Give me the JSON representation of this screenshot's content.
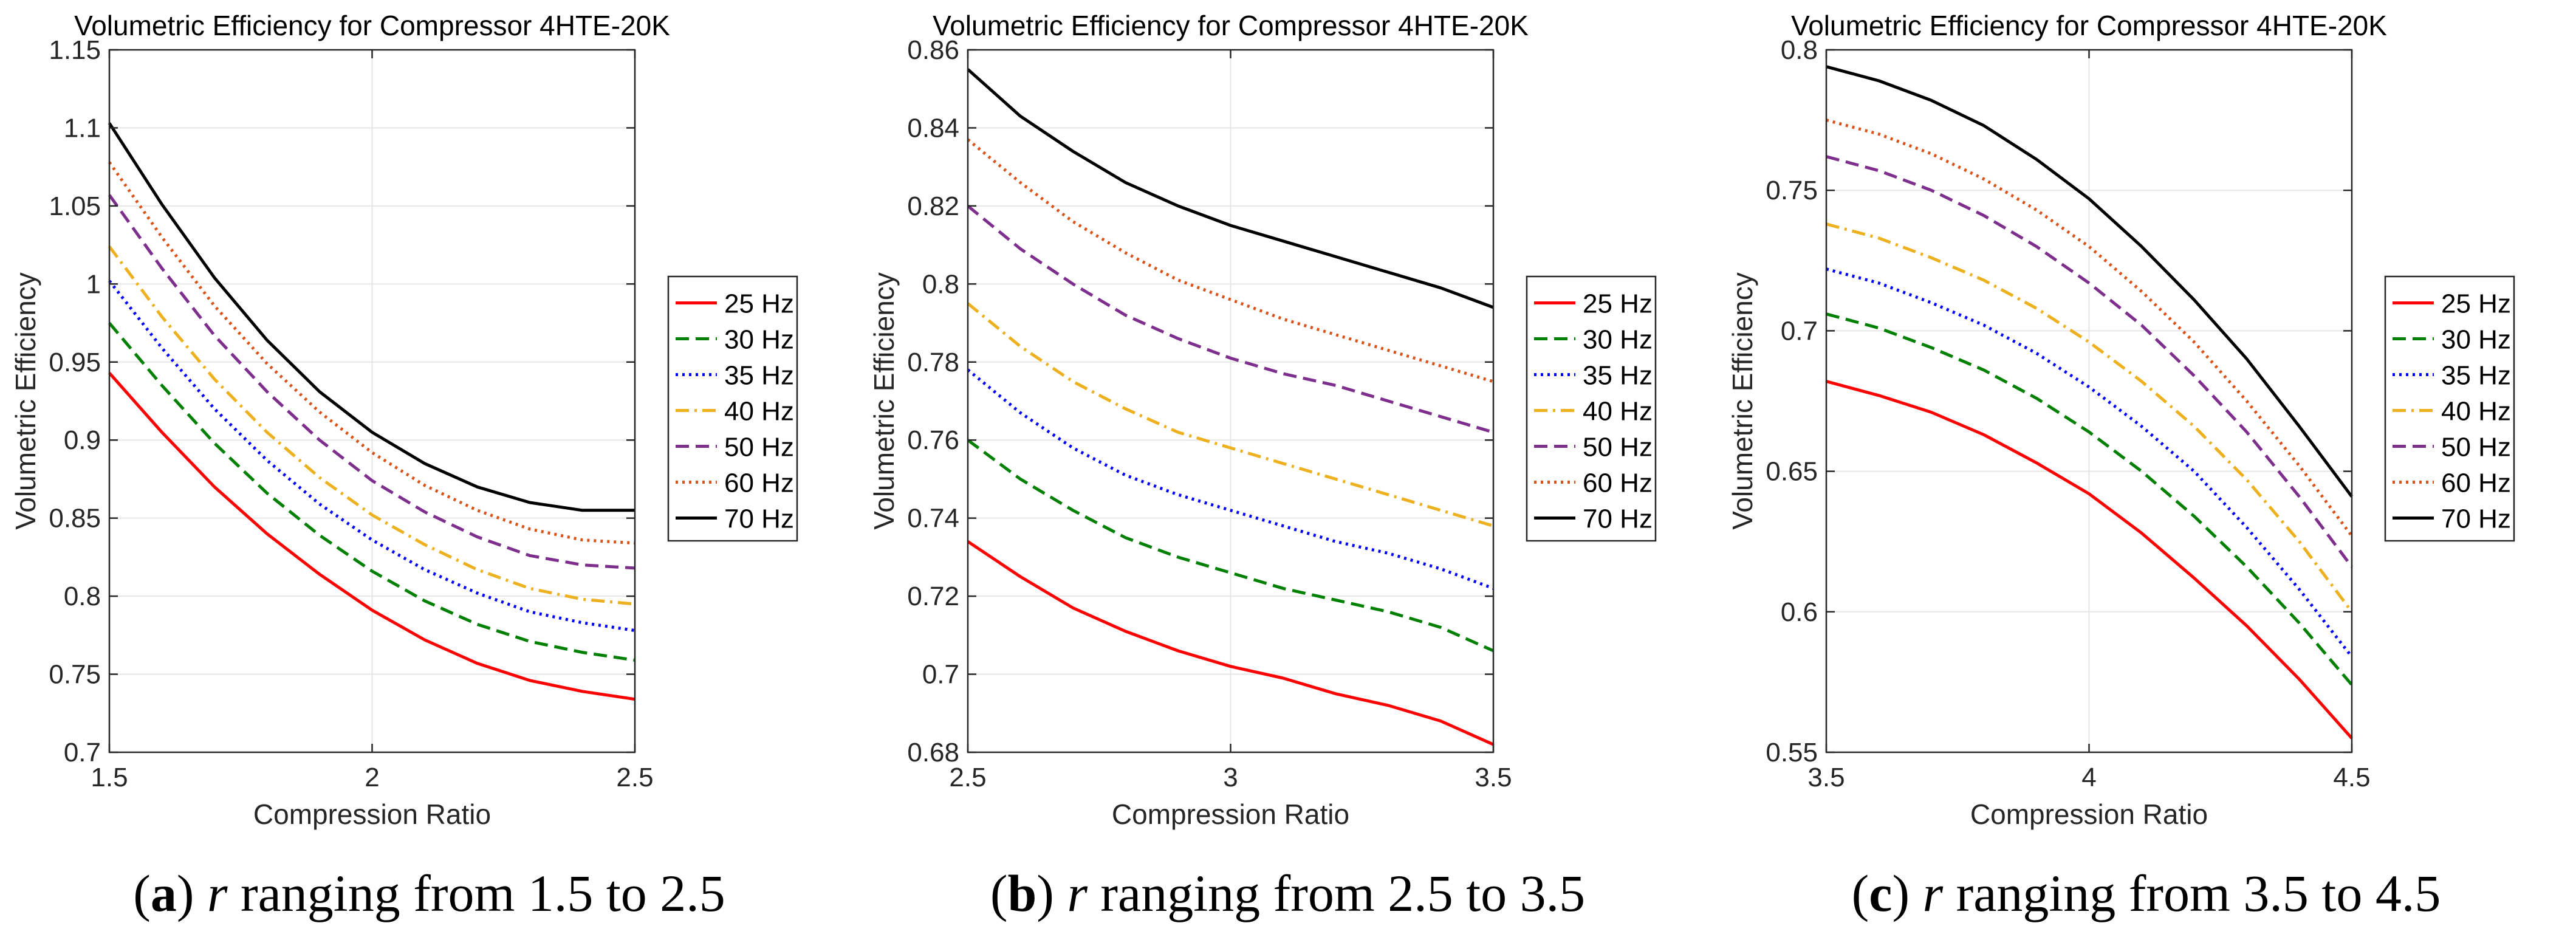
{
  "chart_data": [
    {
      "type": "line",
      "title": "Volumetric Efficiency for Compressor 4HTE-20K",
      "xlabel": "Compression Ratio",
      "ylabel": "Volumetric Efficiency",
      "xlim": [
        1.5,
        2.5
      ],
      "ylim": [
        0.7,
        1.15
      ],
      "xticks": [
        "1.5",
        "2",
        "2.5"
      ],
      "yticks": [
        "0.7",
        "0.75",
        "0.8",
        "0.85",
        "0.9",
        "0.95",
        "1",
        "1.05",
        "1.1",
        "1.15"
      ],
      "grid": true,
      "legend_position": "right",
      "x": [
        1.5,
        1.6,
        1.7,
        1.8,
        1.9,
        2.0,
        2.1,
        2.2,
        2.3,
        2.4,
        2.5
      ],
      "series": [
        {
          "name": "25 Hz",
          "color": "#ff0000",
          "dash": "solid",
          "values": [
            0.943,
            0.905,
            0.87,
            0.84,
            0.814,
            0.791,
            0.772,
            0.757,
            0.746,
            0.739,
            0.734
          ]
        },
        {
          "name": "30 Hz",
          "color": "#008000",
          "dash": "dashed",
          "values": [
            0.975,
            0.935,
            0.898,
            0.866,
            0.839,
            0.816,
            0.797,
            0.782,
            0.771,
            0.764,
            0.759
          ]
        },
        {
          "name": "35 Hz",
          "color": "#0000ff",
          "dash": "dotted",
          "values": [
            1.002,
            0.959,
            0.92,
            0.887,
            0.859,
            0.836,
            0.817,
            0.802,
            0.79,
            0.783,
            0.778
          ]
        },
        {
          "name": "40 Hz",
          "color": "#edb120",
          "dash": "dashdot",
          "values": [
            1.024,
            0.979,
            0.939,
            0.905,
            0.876,
            0.852,
            0.833,
            0.817,
            0.805,
            0.798,
            0.795
          ]
        },
        {
          "name": "50 Hz",
          "color": "#7e2f8e",
          "dash": "dashed",
          "values": [
            1.057,
            1.01,
            0.967,
            0.931,
            0.9,
            0.874,
            0.854,
            0.838,
            0.826,
            0.82,
            0.818
          ]
        },
        {
          "name": "60 Hz",
          "color": "#d95319",
          "dash": "dotted",
          "values": [
            1.078,
            1.03,
            0.986,
            0.949,
            0.918,
            0.892,
            0.871,
            0.855,
            0.843,
            0.836,
            0.834
          ]
        },
        {
          "name": "70 Hz",
          "color": "#000000",
          "dash": "solid",
          "values": [
            1.103,
            1.051,
            1.004,
            0.964,
            0.931,
            0.905,
            0.885,
            0.87,
            0.86,
            0.855,
            0.855
          ]
        }
      ]
    },
    {
      "type": "line",
      "title": "Volumetric Efficiency for Compressor 4HTE-20K",
      "xlabel": "Compression Ratio",
      "ylabel": "Volumetric Efficiency",
      "xlim": [
        2.5,
        3.5
      ],
      "ylim": [
        0.68,
        0.86
      ],
      "xticks": [
        "2.5",
        "3",
        "3.5"
      ],
      "yticks": [
        "0.68",
        "0.7",
        "0.72",
        "0.74",
        "0.76",
        "0.78",
        "0.8",
        "0.82",
        "0.84",
        "0.86"
      ],
      "grid": true,
      "legend_position": "right",
      "x": [
        2.5,
        2.6,
        2.7,
        2.8,
        2.9,
        3.0,
        3.1,
        3.2,
        3.3,
        3.4,
        3.5
      ],
      "series": [
        {
          "name": "25 Hz",
          "color": "#ff0000",
          "dash": "solid",
          "values": [
            0.734,
            0.725,
            0.717,
            0.711,
            0.706,
            0.702,
            0.699,
            0.695,
            0.692,
            0.688,
            0.682
          ]
        },
        {
          "name": "30 Hz",
          "color": "#008000",
          "dash": "dashed",
          "values": [
            0.76,
            0.75,
            0.742,
            0.735,
            0.73,
            0.726,
            0.722,
            0.719,
            0.716,
            0.712,
            0.706
          ]
        },
        {
          "name": "35 Hz",
          "color": "#0000ff",
          "dash": "dotted",
          "values": [
            0.778,
            0.767,
            0.758,
            0.751,
            0.746,
            0.742,
            0.738,
            0.734,
            0.731,
            0.727,
            0.722
          ]
        },
        {
          "name": "40 Hz",
          "color": "#edb120",
          "dash": "dashdot",
          "values": [
            0.795,
            0.784,
            0.775,
            0.768,
            0.762,
            0.758,
            0.754,
            0.75,
            0.746,
            0.742,
            0.738
          ]
        },
        {
          "name": "50 Hz",
          "color": "#7e2f8e",
          "dash": "dashed",
          "values": [
            0.82,
            0.809,
            0.8,
            0.792,
            0.786,
            0.781,
            0.777,
            0.774,
            0.77,
            0.766,
            0.762
          ]
        },
        {
          "name": "60 Hz",
          "color": "#d95319",
          "dash": "dotted",
          "values": [
            0.837,
            0.826,
            0.816,
            0.808,
            0.801,
            0.796,
            0.791,
            0.787,
            0.783,
            0.779,
            0.775
          ]
        },
        {
          "name": "70 Hz",
          "color": "#000000",
          "dash": "solid",
          "values": [
            0.855,
            0.843,
            0.834,
            0.826,
            0.82,
            0.815,
            0.811,
            0.807,
            0.803,
            0.799,
            0.794
          ]
        }
      ]
    },
    {
      "type": "line",
      "title": "Volumetric Efficiency for Compressor 4HTE-20K",
      "xlabel": "Compression Ratio",
      "ylabel": "Volumetric Efficiency",
      "xlim": [
        3.5,
        4.5
      ],
      "ylim": [
        0.55,
        0.8
      ],
      "xticks": [
        "3.5",
        "4",
        "4.5"
      ],
      "yticks": [
        "0.55",
        "0.6",
        "0.65",
        "0.7",
        "0.75",
        "0.8"
      ],
      "grid": true,
      "legend_position": "right",
      "x": [
        3.5,
        3.6,
        3.7,
        3.8,
        3.9,
        4.0,
        4.1,
        4.2,
        4.3,
        4.4,
        4.5
      ],
      "series": [
        {
          "name": "25 Hz",
          "color": "#ff0000",
          "dash": "solid",
          "values": [
            0.682,
            0.677,
            0.671,
            0.663,
            0.653,
            0.642,
            0.628,
            0.612,
            0.595,
            0.576,
            0.555
          ]
        },
        {
          "name": "30 Hz",
          "color": "#008000",
          "dash": "dashed",
          "values": [
            0.706,
            0.701,
            0.694,
            0.686,
            0.676,
            0.664,
            0.65,
            0.634,
            0.616,
            0.596,
            0.574
          ]
        },
        {
          "name": "35 Hz",
          "color": "#0000ff",
          "dash": "dotted",
          "values": [
            0.722,
            0.717,
            0.71,
            0.702,
            0.692,
            0.68,
            0.666,
            0.65,
            0.63,
            0.608,
            0.584
          ]
        },
        {
          "name": "40 Hz",
          "color": "#edb120",
          "dash": "dashdot",
          "values": [
            0.738,
            0.733,
            0.726,
            0.718,
            0.708,
            0.696,
            0.682,
            0.666,
            0.647,
            0.625,
            0.6
          ]
        },
        {
          "name": "50 Hz",
          "color": "#7e2f8e",
          "dash": "dashed",
          "values": [
            0.762,
            0.757,
            0.75,
            0.741,
            0.73,
            0.717,
            0.702,
            0.684,
            0.664,
            0.641,
            0.616
          ]
        },
        {
          "name": "60 Hz",
          "color": "#d95319",
          "dash": "dotted",
          "values": [
            0.775,
            0.77,
            0.763,
            0.754,
            0.743,
            0.73,
            0.714,
            0.696,
            0.675,
            0.652,
            0.627
          ]
        },
        {
          "name": "70 Hz",
          "color": "#000000",
          "dash": "solid",
          "values": [
            0.794,
            0.789,
            0.782,
            0.773,
            0.761,
            0.747,
            0.73,
            0.711,
            0.69,
            0.666,
            0.641
          ]
        }
      ]
    }
  ],
  "captions": [
    {
      "letter": "a",
      "paren_open": "(",
      "paren_close": ")",
      "r": "r",
      "text": " ranging from 1.5 to 2.5"
    },
    {
      "letter": "b",
      "paren_open": "(",
      "paren_close": ")",
      "r": "r",
      "text": " ranging from 2.5 to 3.5"
    },
    {
      "letter": "c",
      "paren_open": "(",
      "paren_close": ")",
      "r": "r",
      "text": " ranging from 3.5 to 4.5"
    }
  ]
}
